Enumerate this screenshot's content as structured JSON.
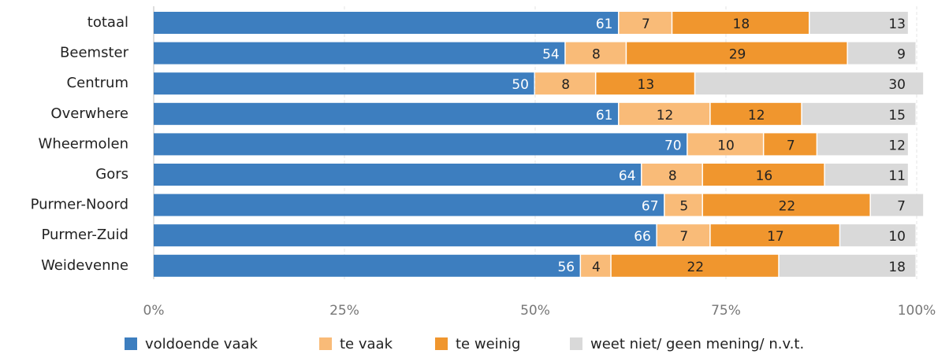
{
  "chart_data": {
    "type": "stacked-barh",
    "categories": [
      "totaal",
      "Beemster",
      "Centrum",
      "Overwhere",
      "Wheermolen",
      "Gors",
      "Purmer-Noord",
      "Purmer-Zuid",
      "Weidevenne"
    ],
    "series": [
      {
        "name": "voldoende vaak",
        "color": "#3d7ebf",
        "values": [
          61,
          54,
          50,
          61,
          70,
          64,
          67,
          66,
          56
        ]
      },
      {
        "name": "te vaak",
        "color": "#f9bb78",
        "values": [
          7,
          8,
          8,
          12,
          10,
          8,
          5,
          7,
          4
        ]
      },
      {
        "name": "te weinig",
        "color": "#f0962e",
        "values": [
          18,
          29,
          13,
          12,
          7,
          16,
          22,
          17,
          22
        ]
      },
      {
        "name": "weet niet/ geen mening/ n.v.t.",
        "color": "#d9d9d9",
        "values": [
          13,
          9,
          30,
          15,
          12,
          11,
          7,
          10,
          18
        ]
      }
    ],
    "xlim": [
      0,
      100
    ],
    "xticks": [
      {
        "value": 0,
        "label": "0%"
      },
      {
        "value": 25,
        "label": "25%"
      },
      {
        "value": 50,
        "label": "50%"
      },
      {
        "value": 75,
        "label": "75%"
      },
      {
        "value": 100,
        "label": "100%"
      }
    ],
    "grid": true
  }
}
